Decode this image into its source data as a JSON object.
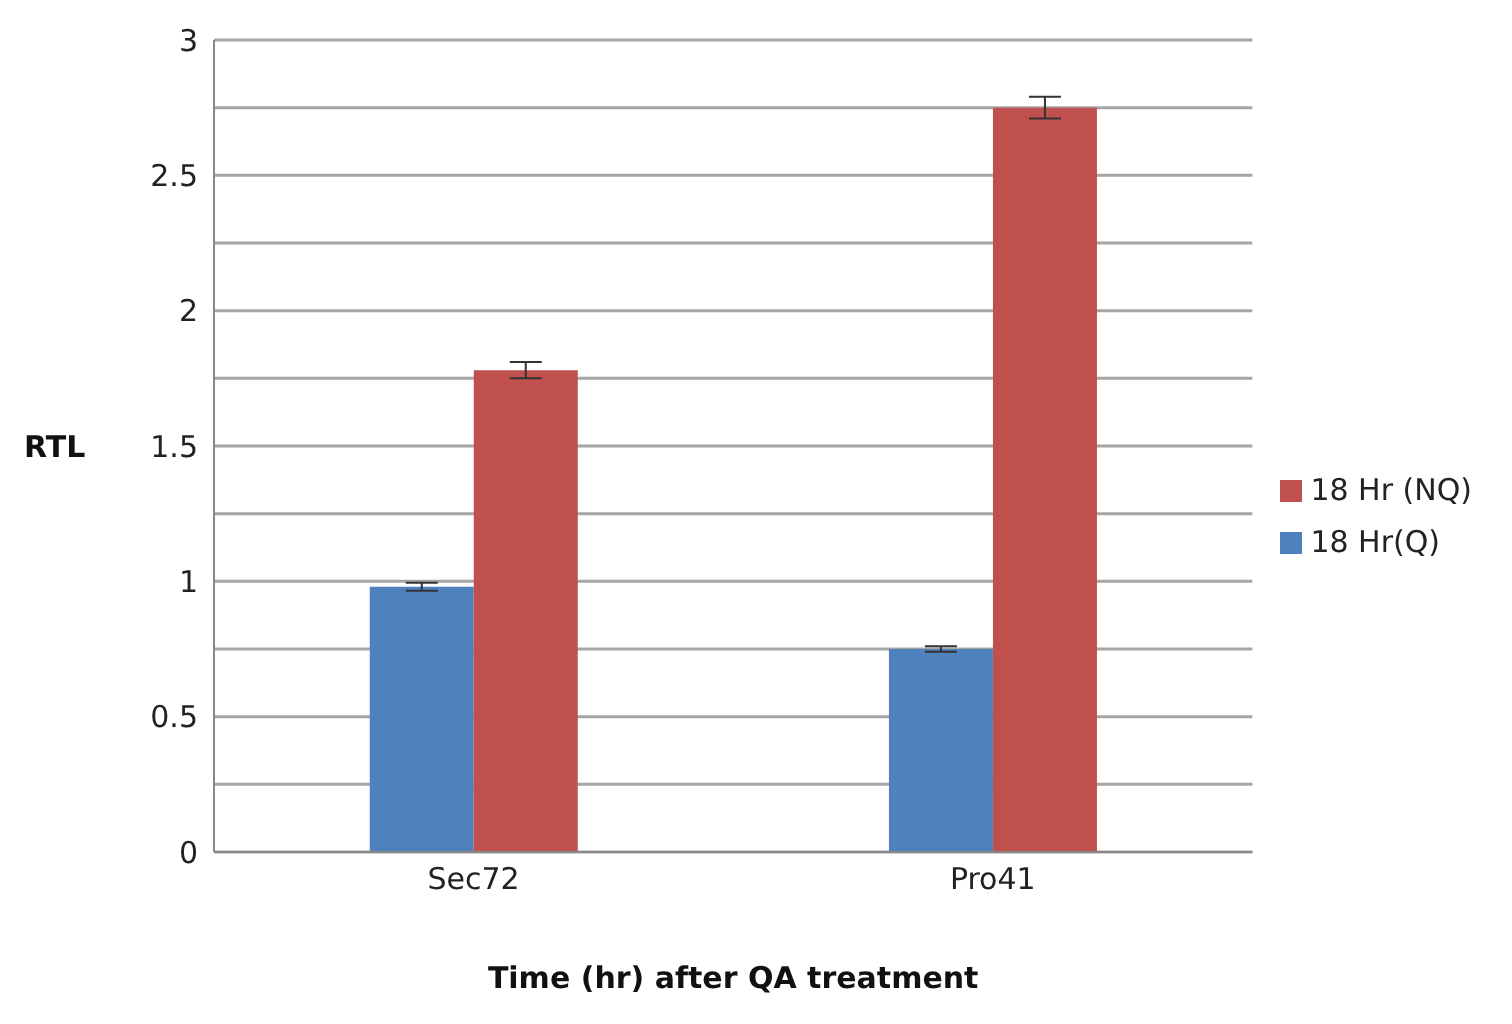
{
  "chart_data": {
    "type": "bar",
    "xlabel": "Time (hr) after QA treatment",
    "ylabel": "RTL",
    "categories": [
      "Sec72",
      "Pro41"
    ],
    "series": [
      {
        "name": "18 Hr(Q)",
        "color": "#4f81bd",
        "values": [
          0.98,
          0.75
        ],
        "errors": [
          0.015,
          0.01
        ]
      },
      {
        "name": "18 Hr (NQ)",
        "color": "#c0504d",
        "values": [
          1.78,
          2.75
        ],
        "errors": [
          0.03,
          0.04
        ]
      }
    ],
    "ylim": [
      0,
      3
    ],
    "yticks": [
      0,
      {
        "value": 0.25,
        "label": null
      },
      0.5,
      {
        "value": 0.75,
        "label": null
      },
      1,
      {
        "value": 1.25,
        "label": null
      },
      1.5,
      {
        "value": 1.75,
        "label": null
      },
      2,
      {
        "value": 2.25,
        "label": null
      },
      2.5,
      {
        "value": 2.75,
        "label": null
      },
      3
    ],
    "grid": "y",
    "legend": "right"
  }
}
